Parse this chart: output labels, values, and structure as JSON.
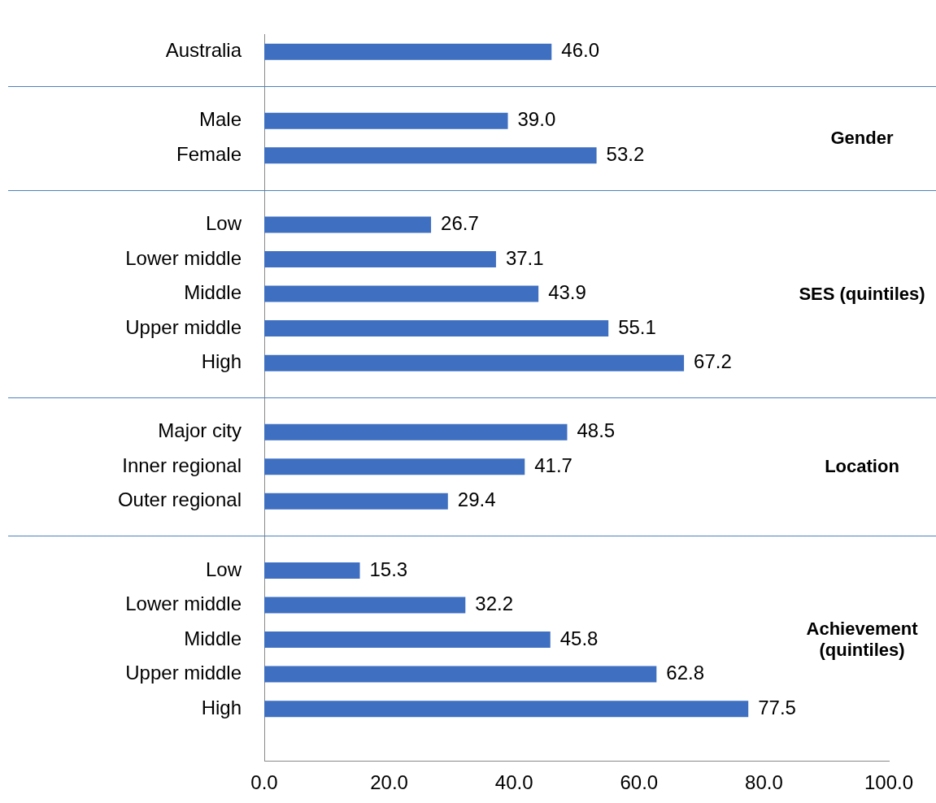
{
  "chart_data": {
    "type": "bar",
    "orientation": "horizontal",
    "categories": [
      "Australia",
      null,
      "Male",
      "Female",
      null,
      "Low",
      "Lower middle",
      "Middle",
      "Upper middle",
      "High",
      null,
      "Major city",
      "Inner regional",
      "Outer regional",
      null,
      "Low",
      "Lower middle",
      "Middle",
      "Upper middle",
      "High",
      null
    ],
    "values": [
      46.0,
      null,
      39.0,
      53.2,
      null,
      26.7,
      37.1,
      43.9,
      55.1,
      67.2,
      null,
      48.5,
      41.7,
      29.4,
      null,
      15.3,
      32.2,
      45.8,
      62.8,
      77.5,
      null
    ],
    "value_labels": [
      "46.0",
      null,
      "39.0",
      "53.2",
      null,
      "26.7",
      "37.1",
      "43.9",
      "55.1",
      "67.2",
      null,
      "48.5",
      "41.7",
      "29.4",
      null,
      "15.3",
      "32.2",
      "45.8",
      "62.8",
      "77.5",
      null
    ],
    "color": "#3e6fc0",
    "xlim": [
      0,
      100
    ],
    "xticks": [
      {
        "value": 0,
        "label": "0.0"
      },
      {
        "value": 20,
        "label": "20.0"
      },
      {
        "value": 40,
        "label": "40.0"
      },
      {
        "value": 60,
        "label": "60.0"
      },
      {
        "value": 80,
        "label": "80.0"
      },
      {
        "value": 100,
        "label": "100.0"
      }
    ],
    "annotations": [
      "Gender",
      "SES (quintiles)",
      "Location",
      "Achievement (quintiles)"
    ],
    "grid": false,
    "legend": false
  }
}
